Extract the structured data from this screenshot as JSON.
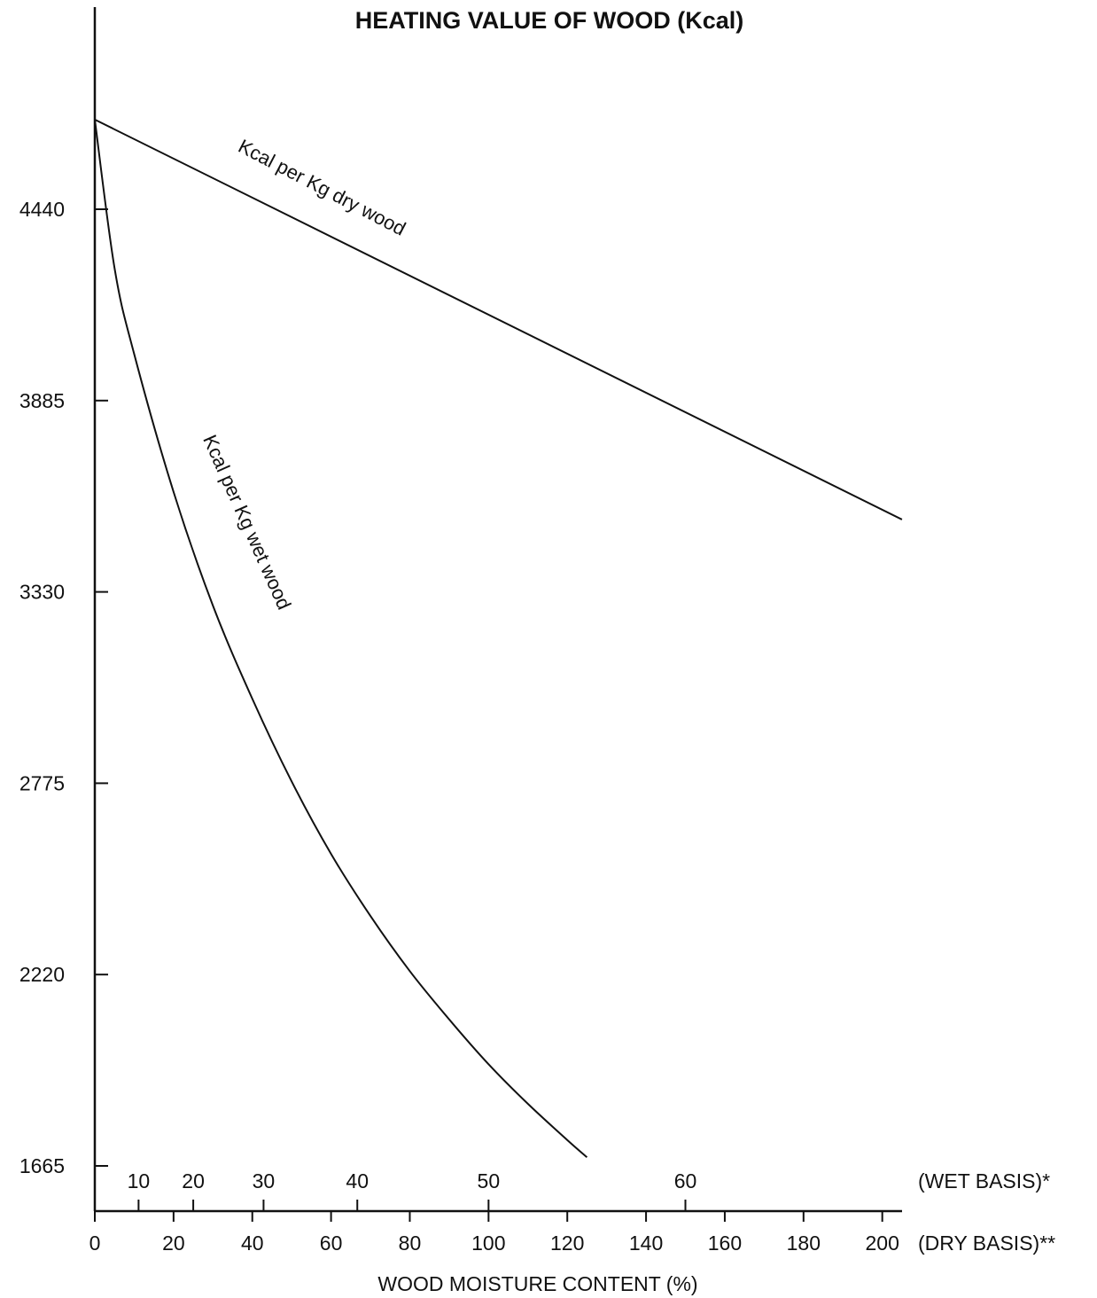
{
  "chart_data": {
    "type": "line",
    "title": "HEATING VALUE OF WOOD (Kcal)",
    "xlabel": "WOOD MOISTURE CONTENT (%)",
    "ylabel": "",
    "ylim": [
      1665,
      4995
    ],
    "xlim": [
      0,
      205
    ],
    "y_ticks": [
      {
        "value": 4440,
        "label": "4440"
      },
      {
        "value": 3885,
        "label": "3885"
      },
      {
        "value": 3330,
        "label": "3330"
      },
      {
        "value": 2775,
        "label": "2775"
      },
      {
        "value": 2220,
        "label": "2220"
      },
      {
        "value": 1665,
        "label": "1665"
      }
    ],
    "x_ticks_dry": [
      {
        "value": 0,
        "label": "0"
      },
      {
        "value": 20,
        "label": "20"
      },
      {
        "value": 40,
        "label": "40"
      },
      {
        "value": 60,
        "label": "60"
      },
      {
        "value": 80,
        "label": "80"
      },
      {
        "value": 100,
        "label": "100"
      },
      {
        "value": 120,
        "label": "120"
      },
      {
        "value": 140,
        "label": "140"
      },
      {
        "value": 160,
        "label": "160"
      },
      {
        "value": 180,
        "label": "180"
      },
      {
        "value": 200,
        "label": "200"
      }
    ],
    "x_axis_dry_label": "(DRY BASIS)**",
    "x_ticks_wet": [
      {
        "value": 10,
        "label": "10"
      },
      {
        "value": 20,
        "label": "20"
      },
      {
        "value": 30,
        "label": "30"
      },
      {
        "value": 40,
        "label": "40"
      },
      {
        "value": 50,
        "label": "50"
      },
      {
        "value": 60,
        "label": "60"
      }
    ],
    "x_axis_wet_label": "(WET BASIS)*",
    "series": [
      {
        "name": "Kcal per Kg dry wood",
        "x": [
          0,
          205
        ],
        "y": [
          4700,
          3540
        ]
      },
      {
        "name": "Kcal per Kg wet wood",
        "x": [
          0,
          5,
          10,
          20,
          30,
          40,
          50,
          60,
          70,
          80,
          90,
          100,
          110,
          120,
          125
        ],
        "y": [
          4700,
          4270,
          4020,
          3620,
          3290,
          3020,
          2780,
          2570,
          2390,
          2230,
          2090,
          1960,
          1845,
          1740,
          1690
        ]
      }
    ],
    "grid": false,
    "legend": "none"
  }
}
